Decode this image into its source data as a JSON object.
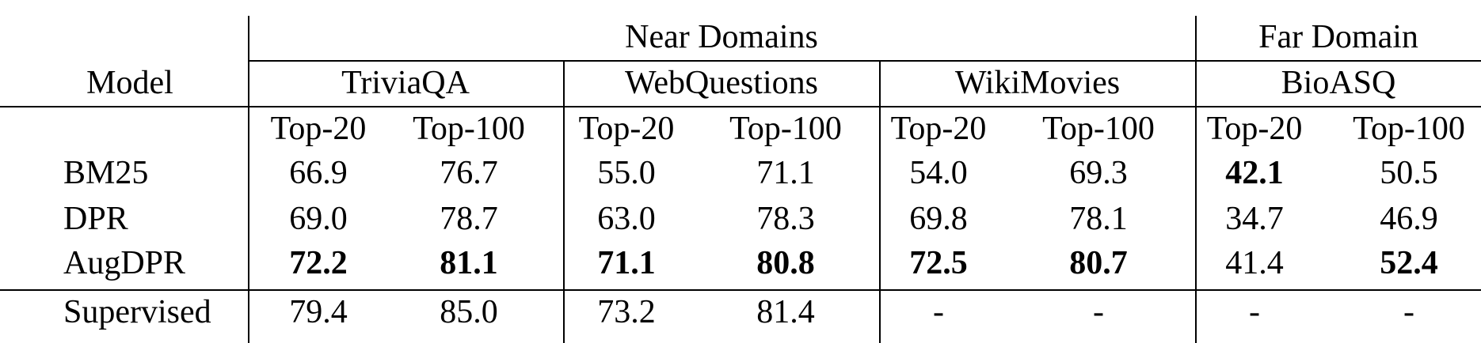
{
  "table": {
    "model_header": "Model",
    "groups": [
      {
        "label": "Near Domains"
      },
      {
        "label": "Far Domain"
      }
    ],
    "datasets": [
      "TriviaQA",
      "WebQuestions",
      "WikiMovies",
      "BioASQ"
    ],
    "metrics": [
      "Top-20",
      "Top-100",
      "Top-20",
      "Top-100",
      "Top-20",
      "Top-100",
      "Top-20",
      "Top-100"
    ],
    "rows": [
      {
        "model": "BM25",
        "cells": [
          {
            "v": "66.9",
            "bold": false
          },
          {
            "v": "76.7",
            "bold": false
          },
          {
            "v": "55.0",
            "bold": false
          },
          {
            "v": "71.1",
            "bold": false
          },
          {
            "v": "54.0",
            "bold": false
          },
          {
            "v": "69.3",
            "bold": false
          },
          {
            "v": "42.1",
            "bold": true
          },
          {
            "v": "50.5",
            "bold": false
          }
        ]
      },
      {
        "model": "DPR",
        "cells": [
          {
            "v": "69.0",
            "bold": false
          },
          {
            "v": "78.7",
            "bold": false
          },
          {
            "v": "63.0",
            "bold": false
          },
          {
            "v": "78.3",
            "bold": false
          },
          {
            "v": "69.8",
            "bold": false
          },
          {
            "v": "78.1",
            "bold": false
          },
          {
            "v": "34.7",
            "bold": false
          },
          {
            "v": "46.9",
            "bold": false
          }
        ]
      },
      {
        "model": "AugDPR",
        "cells": [
          {
            "v": "72.2",
            "bold": true
          },
          {
            "v": "81.1",
            "bold": true
          },
          {
            "v": "71.1",
            "bold": true
          },
          {
            "v": "80.8",
            "bold": true
          },
          {
            "v": "72.5",
            "bold": true
          },
          {
            "v": "80.7",
            "bold": true
          },
          {
            "v": "41.4",
            "bold": false
          },
          {
            "v": "52.4",
            "bold": true
          }
        ]
      },
      {
        "model": "Supervised",
        "cells": [
          {
            "v": "79.4",
            "bold": false
          },
          {
            "v": "85.0",
            "bold": false
          },
          {
            "v": "73.2",
            "bold": false
          },
          {
            "v": "81.4",
            "bold": false
          },
          {
            "v": "-",
            "bold": false
          },
          {
            "v": "-",
            "bold": false
          },
          {
            "v": "-",
            "bold": false
          },
          {
            "v": "-",
            "bold": false
          }
        ]
      }
    ]
  }
}
